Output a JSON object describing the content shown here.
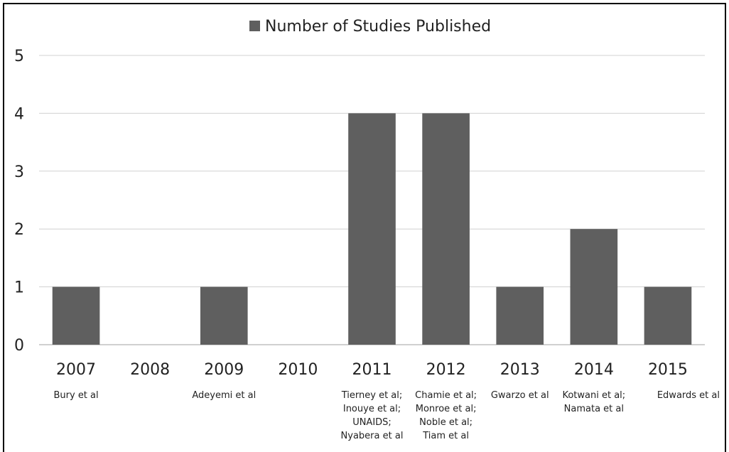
{
  "chart_data": {
    "type": "bar",
    "categories": [
      "2007",
      "2008",
      "2009",
      "2010",
      "2011",
      "2012",
      "2013",
      "2014",
      "2015"
    ],
    "series": [
      {
        "name": "Number of Studies Published",
        "values": [
          1,
          0,
          1,
          0,
          4,
          4,
          1,
          2,
          1
        ],
        "color": "#5f5f5f"
      }
    ],
    "ylim": [
      0,
      5
    ],
    "yticks": [
      "0",
      "1",
      "2",
      "3",
      "4",
      "5"
    ],
    "grid": true,
    "legend_position": "top-center",
    "annotations": [
      [
        "Bury et al"
      ],
      [],
      [
        "Adeyemi et al"
      ],
      [],
      [
        "Tierney et al;",
        "Inouye et al;",
        "UNAIDS;",
        "Nyabera et al"
      ],
      [
        "Chamie et al;",
        "Monroe et al;",
        "Noble et al;",
        "Tiam et al"
      ],
      [
        "Gwarzo et al"
      ],
      [
        "Kotwani et al;",
        "Namata et al"
      ],
      [
        "Edwards et al"
      ]
    ]
  },
  "colors": {
    "bar": "#5f5f5f",
    "grid": "#d0d0d0",
    "axis": "#a0a0a0",
    "background": "#ffffff"
  }
}
